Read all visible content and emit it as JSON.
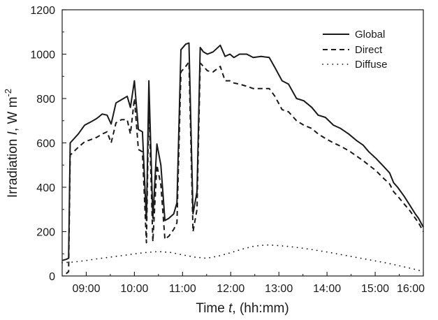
{
  "chart_data": {
    "type": "line",
    "title": "",
    "xlabel": {
      "prefix": "Time ",
      "symbol": "t",
      "suffix": ", (hh:mm)"
    },
    "ylabel": {
      "prefix": "Irradiation ",
      "symbol": "I",
      "suffix": ", W m",
      "superscript": "-2"
    },
    "xlim": [
      "08:30",
      "16:00"
    ],
    "ylim": [
      0,
      1200
    ],
    "x_ticks": [
      "09:00",
      "10:00",
      "11:00",
      "12:00",
      "13:00",
      "14:00",
      "15:00",
      "16:00"
    ],
    "y_ticks": [
      0,
      200,
      400,
      600,
      800,
      1000,
      1200
    ],
    "grid": false,
    "legend": {
      "placement": "top-right"
    },
    "series": [
      {
        "name": "Global",
        "style": "solid",
        "color": "#1a1a1a",
        "points": [
          [
            "08:30",
            70
          ],
          [
            "08:35",
            75
          ],
          [
            "08:38",
            80
          ],
          [
            "08:40",
            600
          ],
          [
            "08:50",
            640
          ],
          [
            "08:58",
            680
          ],
          [
            "09:06",
            695
          ],
          [
            "09:13",
            710
          ],
          [
            "09:20",
            730
          ],
          [
            "09:26",
            725
          ],
          [
            "09:31",
            685
          ],
          [
            "09:37",
            780
          ],
          [
            "09:44",
            795
          ],
          [
            "09:51",
            810
          ],
          [
            "09:55",
            760
          ],
          [
            "10:00",
            880
          ],
          [
            "10:05",
            660
          ],
          [
            "10:10",
            650
          ],
          [
            "10:15",
            250
          ],
          [
            "10:18",
            880
          ],
          [
            "10:23",
            260
          ],
          [
            "10:28",
            595
          ],
          [
            "10:33",
            500
          ],
          [
            "10:38",
            250
          ],
          [
            "10:43",
            260
          ],
          [
            "10:49",
            280
          ],
          [
            "10:53",
            330
          ],
          [
            "10:58",
            1020
          ],
          [
            "11:04",
            1045
          ],
          [
            "11:08",
            1050
          ],
          [
            "11:13",
            280
          ],
          [
            "11:18",
            380
          ],
          [
            "11:22",
            1030
          ],
          [
            "11:26",
            1010
          ],
          [
            "11:31",
            1000
          ],
          [
            "11:38",
            1010
          ],
          [
            "11:47",
            1040
          ],
          [
            "11:53",
            990
          ],
          [
            "11:59",
            1000
          ],
          [
            "12:04",
            985
          ],
          [
            "12:11",
            1000
          ],
          [
            "12:20",
            1000
          ],
          [
            "12:28",
            985
          ],
          [
            "12:38",
            990
          ],
          [
            "12:48",
            985
          ],
          [
            "12:55",
            940
          ],
          [
            "13:04",
            880
          ],
          [
            "13:12",
            865
          ],
          [
            "13:22",
            800
          ],
          [
            "13:31",
            790
          ],
          [
            "13:41",
            760
          ],
          [
            "13:49",
            725
          ],
          [
            "13:58",
            715
          ],
          [
            "14:08",
            680
          ],
          [
            "14:17",
            665
          ],
          [
            "14:27",
            640
          ],
          [
            "14:37",
            610
          ],
          [
            "14:45",
            590
          ],
          [
            "14:52",
            560
          ],
          [
            "15:01",
            530
          ],
          [
            "15:09",
            500
          ],
          [
            "15:18",
            465
          ],
          [
            "15:23",
            420
          ],
          [
            "15:28",
            400
          ],
          [
            "15:36",
            360
          ],
          [
            "15:43",
            320
          ],
          [
            "15:50",
            280
          ],
          [
            "15:54",
            260
          ],
          [
            "16:00",
            220
          ]
        ]
      },
      {
        "name": "Direct",
        "style": "dashed",
        "color": "#1a1a1a",
        "points": [
          [
            "08:35",
            10
          ],
          [
            "08:38",
            20
          ],
          [
            "08:40",
            545
          ],
          [
            "08:50",
            580
          ],
          [
            "08:58",
            605
          ],
          [
            "09:06",
            615
          ],
          [
            "09:13",
            625
          ],
          [
            "09:20",
            640
          ],
          [
            "09:26",
            650
          ],
          [
            "09:31",
            600
          ],
          [
            "09:37",
            690
          ],
          [
            "09:44",
            705
          ],
          [
            "09:51",
            705
          ],
          [
            "09:55",
            640
          ],
          [
            "10:00",
            800
          ],
          [
            "10:05",
            570
          ],
          [
            "10:10",
            560
          ],
          [
            "10:15",
            150
          ],
          [
            "10:18",
            780
          ],
          [
            "10:23",
            155
          ],
          [
            "10:28",
            500
          ],
          [
            "10:33",
            410
          ],
          [
            "10:38",
            165
          ],
          [
            "10:43",
            180
          ],
          [
            "10:49",
            210
          ],
          [
            "10:53",
            240
          ],
          [
            "10:58",
            920
          ],
          [
            "11:04",
            945
          ],
          [
            "11:08",
            965
          ],
          [
            "11:13",
            200
          ],
          [
            "11:18",
            300
          ],
          [
            "11:22",
            960
          ],
          [
            "11:26",
            945
          ],
          [
            "11:31",
            925
          ],
          [
            "11:38",
            920
          ],
          [
            "11:47",
            945
          ],
          [
            "11:53",
            880
          ],
          [
            "11:59",
            880
          ],
          [
            "12:04",
            870
          ],
          [
            "12:11",
            865
          ],
          [
            "12:20",
            855
          ],
          [
            "12:28",
            845
          ],
          [
            "12:38",
            845
          ],
          [
            "12:48",
            845
          ],
          [
            "12:55",
            810
          ],
          [
            "13:04",
            750
          ],
          [
            "13:12",
            740
          ],
          [
            "13:22",
            700
          ],
          [
            "13:31",
            680
          ],
          [
            "13:41",
            665
          ],
          [
            "13:49",
            640
          ],
          [
            "13:58",
            620
          ],
          [
            "14:08",
            600
          ],
          [
            "14:17",
            585
          ],
          [
            "14:27",
            565
          ],
          [
            "14:37",
            540
          ],
          [
            "14:45",
            520
          ],
          [
            "14:52",
            500
          ],
          [
            "15:01",
            475
          ],
          [
            "15:09",
            445
          ],
          [
            "15:18",
            415
          ],
          [
            "15:23",
            380
          ],
          [
            "15:28",
            360
          ],
          [
            "15:36",
            325
          ],
          [
            "15:43",
            295
          ],
          [
            "15:50",
            260
          ],
          [
            "15:54",
            240
          ],
          [
            "16:00",
            200
          ]
        ]
      },
      {
        "name": "Diffuse",
        "style": "dotted",
        "color": "#1a1a1a",
        "points": [
          [
            "08:30",
            60
          ],
          [
            "08:45",
            63
          ],
          [
            "09:00",
            70
          ],
          [
            "09:15",
            78
          ],
          [
            "09:30",
            85
          ],
          [
            "09:45",
            92
          ],
          [
            "10:00",
            100
          ],
          [
            "10:15",
            106
          ],
          [
            "10:30",
            110
          ],
          [
            "10:45",
            106
          ],
          [
            "11:00",
            95
          ],
          [
            "11:15",
            85
          ],
          [
            "11:30",
            80
          ],
          [
            "11:45",
            90
          ],
          [
            "12:00",
            105
          ],
          [
            "12:15",
            122
          ],
          [
            "12:30",
            135
          ],
          [
            "12:45",
            140
          ],
          [
            "13:00",
            137
          ],
          [
            "13:15",
            132
          ],
          [
            "13:30",
            125
          ],
          [
            "13:45",
            117
          ],
          [
            "14:00",
            108
          ],
          [
            "14:15",
            98
          ],
          [
            "14:30",
            88
          ],
          [
            "14:45",
            78
          ],
          [
            "15:00",
            68
          ],
          [
            "15:15",
            58
          ],
          [
            "15:30",
            46
          ],
          [
            "15:45",
            34
          ],
          [
            "16:00",
            20
          ]
        ]
      }
    ]
  }
}
